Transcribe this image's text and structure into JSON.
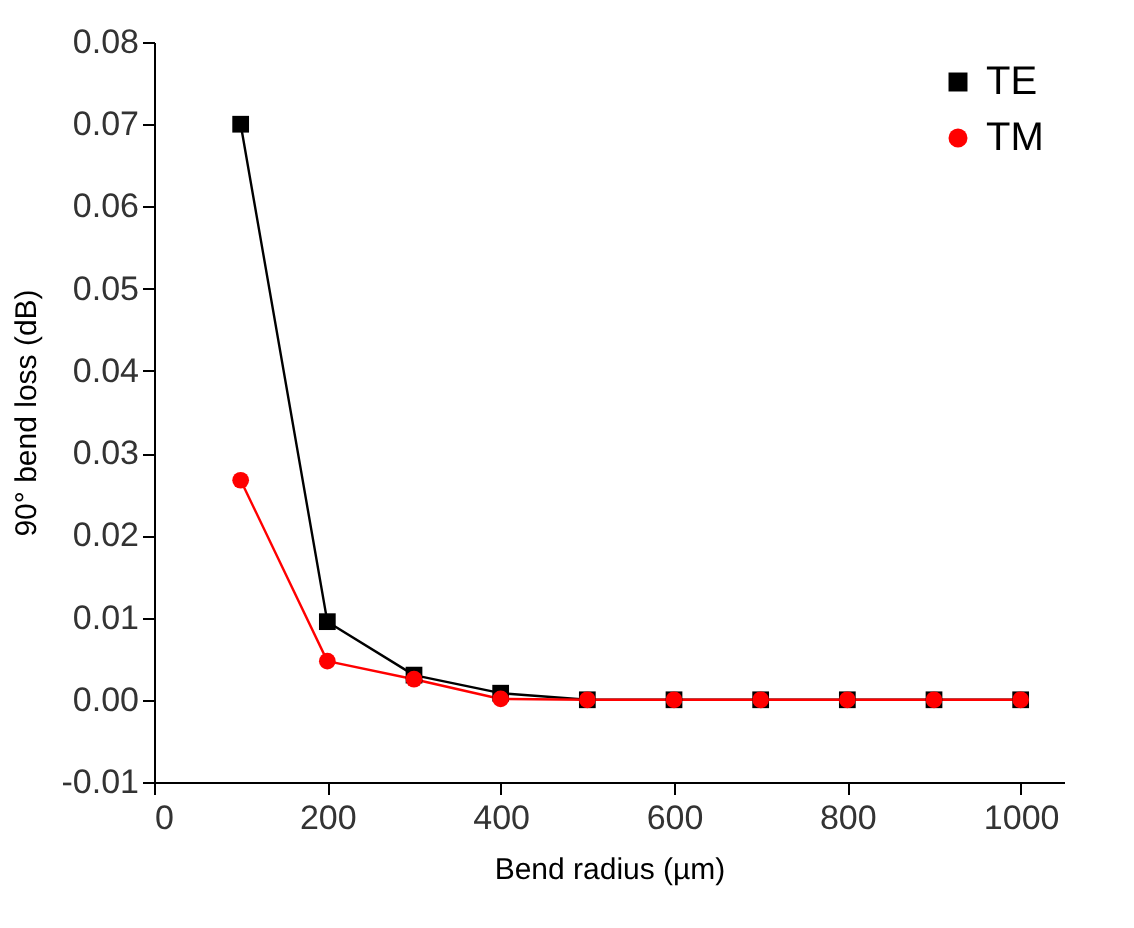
{
  "chart_data": {
    "type": "line",
    "xlabel": "Bend radius (µm)",
    "ylabel": "90° bend loss (dB)",
    "x": [
      100,
      200,
      300,
      400,
      500,
      600,
      700,
      800,
      900,
      1000
    ],
    "series": [
      {
        "name": "TE",
        "color": "#000000",
        "marker": "square",
        "values": [
          0.07,
          0.0095,
          0.003,
          0.0008,
          0,
          0,
          0,
          0,
          0,
          0
        ]
      },
      {
        "name": "TM",
        "color": "#ff0000",
        "marker": "circle",
        "values": [
          0.0267,
          0.0047,
          0.0025,
          0.0001,
          0,
          0,
          0,
          0,
          0,
          0
        ]
      }
    ],
    "xlim": [
      0,
      1050
    ],
    "xticks": [
      0,
      200,
      400,
      600,
      800,
      1000
    ],
    "ylim": [
      -0.01,
      0.08
    ],
    "yticks": [
      -0.01,
      {
        "value": 0,
        "label": "0.00"
      },
      0.01,
      0.02,
      0.03,
      0.04,
      0.05,
      0.06,
      0.07,
      0.08
    ],
    "grid": false,
    "legend": "top right",
    "line_style": "solid"
  }
}
